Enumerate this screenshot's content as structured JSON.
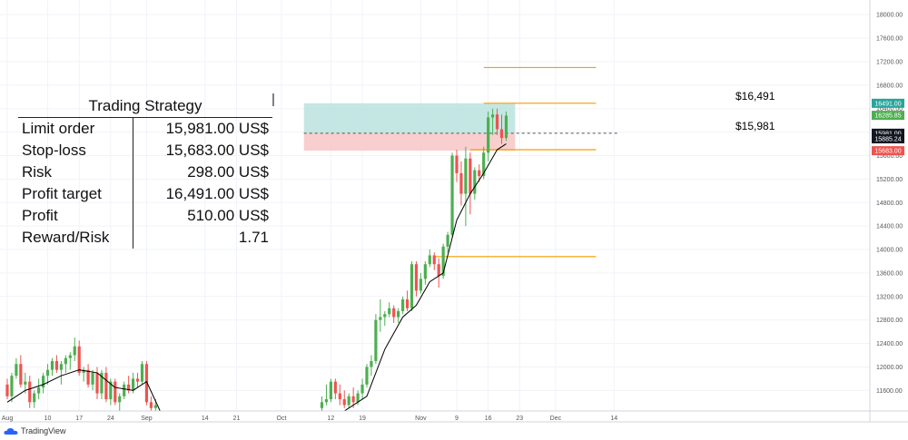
{
  "strategy": {
    "title": "Trading Strategy",
    "rows": [
      {
        "label": "Limit order",
        "value": "15,981.00 US$"
      },
      {
        "label": "Stop-loss",
        "value": "15,683.00 US$"
      },
      {
        "label": "Risk",
        "value": "298.00 US$"
      },
      {
        "label": "Profit target",
        "value": "16,491.00 US$"
      },
      {
        "label": "Profit",
        "value": "510.00 US$"
      },
      {
        "label": "Reward/Risk",
        "value": "1.71"
      }
    ]
  },
  "branding": {
    "logo": "TradingView"
  },
  "chart_data": {
    "type": "candlestick",
    "y_ticks": [
      11600,
      12000,
      12400,
      12800,
      13200,
      13600,
      14000,
      14400,
      14800,
      15200,
      15600,
      16000,
      16400,
      16800,
      17200,
      17600,
      18000
    ],
    "ylim": [
      11250,
      18250
    ],
    "x_ticks": [
      {
        "label": "Aug",
        "day": 0
      },
      {
        "label": "10",
        "day": 9
      },
      {
        "label": "17",
        "day": 16
      },
      {
        "label": "24",
        "day": 23
      },
      {
        "label": "Sep",
        "day": 31
      },
      {
        "label": "14",
        "day": 44
      },
      {
        "label": "21",
        "day": 51
      },
      {
        "label": "Oct",
        "day": 61
      },
      {
        "label": "12",
        "day": 72
      },
      {
        "label": "19",
        "day": 79
      },
      {
        "label": "Nov",
        "day": 92
      },
      {
        "label": "9",
        "day": 100
      },
      {
        "label": "16",
        "day": 107
      },
      {
        "label": "23",
        "day": 114
      },
      {
        "label": "Dec",
        "day": 122
      },
      {
        "label": "14",
        "day": 135
      }
    ],
    "candles": [
      {
        "d": 0,
        "o": 11700,
        "h": 11800,
        "l": 11450,
        "c": 11500
      },
      {
        "d": 1,
        "o": 11500,
        "h": 11900,
        "l": 11400,
        "c": 11850
      },
      {
        "d": 2,
        "o": 11850,
        "h": 12150,
        "l": 11800,
        "c": 12050
      },
      {
        "d": 3,
        "o": 12050,
        "h": 12200,
        "l": 11650,
        "c": 11700
      },
      {
        "d": 4,
        "o": 11700,
        "h": 11900,
        "l": 11550,
        "c": 11750
      },
      {
        "d": 5,
        "o": 11750,
        "h": 11850,
        "l": 11300,
        "c": 11400
      },
      {
        "d": 6,
        "o": 11400,
        "h": 11600,
        "l": 11300,
        "c": 11550
      },
      {
        "d": 7,
        "o": 11550,
        "h": 11800,
        "l": 11450,
        "c": 11650
      },
      {
        "d": 8,
        "o": 11650,
        "h": 11900,
        "l": 11550,
        "c": 11850
      },
      {
        "d": 9,
        "o": 11850,
        "h": 12050,
        "l": 11700,
        "c": 11950
      },
      {
        "d": 10,
        "o": 11950,
        "h": 12150,
        "l": 11850,
        "c": 12100
      },
      {
        "d": 11,
        "o": 12100,
        "h": 12200,
        "l": 11900,
        "c": 11950
      },
      {
        "d": 12,
        "o": 11950,
        "h": 12100,
        "l": 11700,
        "c": 12050
      },
      {
        "d": 13,
        "o": 12050,
        "h": 12200,
        "l": 11900,
        "c": 12150
      },
      {
        "d": 14,
        "o": 12150,
        "h": 12250,
        "l": 11950,
        "c": 12200
      },
      {
        "d": 15,
        "o": 12200,
        "h": 12500,
        "l": 12100,
        "c": 12350
      },
      {
        "d": 16,
        "o": 12350,
        "h": 12450,
        "l": 11850,
        "c": 11900
      },
      {
        "d": 17,
        "o": 11900,
        "h": 12000,
        "l": 11750,
        "c": 11950
      },
      {
        "d": 18,
        "o": 11950,
        "h": 12050,
        "l": 11650,
        "c": 11700
      },
      {
        "d": 19,
        "o": 11700,
        "h": 11950,
        "l": 11600,
        "c": 11900
      },
      {
        "d": 20,
        "o": 11900,
        "h": 12000,
        "l": 11450,
        "c": 11550
      },
      {
        "d": 21,
        "o": 11550,
        "h": 11950,
        "l": 11450,
        "c": 11900
      },
      {
        "d": 22,
        "o": 11900,
        "h": 12000,
        "l": 11400,
        "c": 11450
      },
      {
        "d": 23,
        "o": 11450,
        "h": 11800,
        "l": 11350,
        "c": 11750
      },
      {
        "d": 24,
        "o": 11750,
        "h": 11800,
        "l": 11350,
        "c": 11400
      },
      {
        "d": 25,
        "o": 11400,
        "h": 11550,
        "l": 11250,
        "c": 11500
      },
      {
        "d": 26,
        "o": 11500,
        "h": 11750,
        "l": 11450,
        "c": 11700
      },
      {
        "d": 27,
        "o": 11700,
        "h": 11850,
        "l": 11550,
        "c": 11600
      },
      {
        "d": 28,
        "o": 11600,
        "h": 11900,
        "l": 11550,
        "c": 11800
      },
      {
        "d": 29,
        "o": 11800,
        "h": 11900,
        "l": 11650,
        "c": 11750
      },
      {
        "d": 30,
        "o": 11750,
        "h": 12100,
        "l": 11700,
        "c": 12050
      },
      {
        "d": 31,
        "o": 12050,
        "h": 12100,
        "l": 11350,
        "c": 11400
      },
      {
        "d": 32,
        "o": 11400,
        "h": 11500,
        "l": 11250,
        "c": 11300
      },
      {
        "d": 33,
        "o": 11300,
        "h": 11450,
        "l": 11250,
        "c": 11350
      },
      {
        "d": 70,
        "o": 11300,
        "h": 11500,
        "l": 11250,
        "c": 11400
      },
      {
        "d": 71,
        "o": 11400,
        "h": 11700,
        "l": 11350,
        "c": 11450
      },
      {
        "d": 72,
        "o": 11450,
        "h": 11800,
        "l": 11400,
        "c": 11750
      },
      {
        "d": 73,
        "o": 11750,
        "h": 11800,
        "l": 11450,
        "c": 11550
      },
      {
        "d": 74,
        "o": 11550,
        "h": 11700,
        "l": 11350,
        "c": 11450
      },
      {
        "d": 75,
        "o": 11450,
        "h": 11600,
        "l": 11300,
        "c": 11350
      },
      {
        "d": 76,
        "o": 11350,
        "h": 11550,
        "l": 11300,
        "c": 11500
      },
      {
        "d": 77,
        "o": 11500,
        "h": 11650,
        "l": 11300,
        "c": 11400
      },
      {
        "d": 78,
        "o": 11400,
        "h": 11600,
        "l": 11350,
        "c": 11550
      },
      {
        "d": 79,
        "o": 11550,
        "h": 11800,
        "l": 11450,
        "c": 11700
      },
      {
        "d": 80,
        "o": 11700,
        "h": 12050,
        "l": 11650,
        "c": 12000
      },
      {
        "d": 81,
        "o": 12000,
        "h": 12200,
        "l": 11850,
        "c": 12100
      },
      {
        "d": 82,
        "o": 12100,
        "h": 12900,
        "l": 12050,
        "c": 12800
      },
      {
        "d": 83,
        "o": 12800,
        "h": 13150,
        "l": 12600,
        "c": 12850
      },
      {
        "d": 84,
        "o": 12850,
        "h": 12950,
        "l": 12700,
        "c": 12900
      },
      {
        "d": 85,
        "o": 12900,
        "h": 13100,
        "l": 12850,
        "c": 13000
      },
      {
        "d": 86,
        "o": 13000,
        "h": 13050,
        "l": 12750,
        "c": 12850
      },
      {
        "d": 87,
        "o": 12850,
        "h": 13000,
        "l": 12750,
        "c": 12950
      },
      {
        "d": 88,
        "o": 12950,
        "h": 13200,
        "l": 12900,
        "c": 13150
      },
      {
        "d": 89,
        "o": 13150,
        "h": 13300,
        "l": 12950,
        "c": 13000
      },
      {
        "d": 90,
        "o": 13000,
        "h": 13800,
        "l": 12950,
        "c": 13750
      },
      {
        "d": 91,
        "o": 13750,
        "h": 13800,
        "l": 13200,
        "c": 13300
      },
      {
        "d": 92,
        "o": 13300,
        "h": 13600,
        "l": 13250,
        "c": 13500
      },
      {
        "d": 93,
        "o": 13500,
        "h": 13800,
        "l": 13400,
        "c": 13750
      },
      {
        "d": 94,
        "o": 13750,
        "h": 14000,
        "l": 13700,
        "c": 13900
      },
      {
        "d": 95,
        "o": 13900,
        "h": 13950,
        "l": 13650,
        "c": 13750
      },
      {
        "d": 96,
        "o": 13750,
        "h": 13850,
        "l": 13350,
        "c": 13550
      },
      {
        "d": 97,
        "o": 13550,
        "h": 14100,
        "l": 13500,
        "c": 14050
      },
      {
        "d": 98,
        "o": 14050,
        "h": 14300,
        "l": 13950,
        "c": 14250
      },
      {
        "d": 99,
        "o": 14250,
        "h": 15650,
        "l": 14200,
        "c": 15600
      },
      {
        "d": 100,
        "o": 15600,
        "h": 15700,
        "l": 15150,
        "c": 15300
      },
      {
        "d": 101,
        "o": 15300,
        "h": 15500,
        "l": 14750,
        "c": 14950
      },
      {
        "d": 102,
        "o": 14950,
        "h": 15750,
        "l": 14400,
        "c": 15550
      },
      {
        "d": 103,
        "o": 15550,
        "h": 15650,
        "l": 14600,
        "c": 14950
      },
      {
        "d": 104,
        "o": 14950,
        "h": 15400,
        "l": 14850,
        "c": 15350
      },
      {
        "d": 105,
        "o": 15350,
        "h": 15450,
        "l": 15150,
        "c": 15250
      },
      {
        "d": 106,
        "o": 15250,
        "h": 15750,
        "l": 15200,
        "c": 15650
      },
      {
        "d": 107,
        "o": 15650,
        "h": 16350,
        "l": 15500,
        "c": 16250
      },
      {
        "d": 108,
        "o": 16250,
        "h": 16400,
        "l": 15950,
        "c": 16300
      },
      {
        "d": 109,
        "o": 16300,
        "h": 16400,
        "l": 15950,
        "c": 16050
      },
      {
        "d": 110,
        "o": 16050,
        "h": 16300,
        "l": 15800,
        "c": 15900
      },
      {
        "d": 111,
        "o": 15900,
        "h": 16350,
        "l": 15850,
        "c": 16280
      }
    ],
    "ma_line": [
      {
        "d": 0,
        "v": 11400
      },
      {
        "d": 4,
        "v": 11600
      },
      {
        "d": 8,
        "v": 11700
      },
      {
        "d": 12,
        "v": 11850
      },
      {
        "d": 16,
        "v": 11950
      },
      {
        "d": 20,
        "v": 11900
      },
      {
        "d": 24,
        "v": 11650
      },
      {
        "d": 28,
        "v": 11600
      },
      {
        "d": 31,
        "v": 11750
      },
      {
        "d": 34,
        "v": 11250
      },
      {
        "d": 75,
        "v": 11250
      },
      {
        "d": 80,
        "v": 11500
      },
      {
        "d": 84,
        "v": 12300
      },
      {
        "d": 88,
        "v": 12850
      },
      {
        "d": 91,
        "v": 13050
      },
      {
        "d": 94,
        "v": 13450
      },
      {
        "d": 97,
        "v": 13600
      },
      {
        "d": 100,
        "v": 14500
      },
      {
        "d": 103,
        "v": 14950
      },
      {
        "d": 106,
        "v": 15300
      },
      {
        "d": 109,
        "v": 15700
      },
      {
        "d": 111,
        "v": 15800
      }
    ],
    "position": {
      "entry": 15981,
      "stop": 15683,
      "target": 16491,
      "start_day": 66,
      "end_day": 113,
      "label_target": "$16,491",
      "label_entry": "$15,981"
    },
    "h_lines": [
      {
        "v": 17100,
        "from": 106,
        "to": 131
      },
      {
        "v": 16491,
        "from": 106,
        "to": 131
      },
      {
        "v": 15700,
        "from": 103,
        "to": 131
      },
      {
        "v": 13880,
        "from": 95,
        "to": 131
      }
    ],
    "price_tags": [
      {
        "v": 16491,
        "text": "16491.00",
        "bg": "#26a69a"
      },
      {
        "v": 16285.85,
        "text": "16285.85",
        "bg": "#4caf50"
      },
      {
        "v": 15981,
        "text": "15981.00",
        "bg": "#131722"
      },
      {
        "v": 15885.24,
        "text": "15885.24",
        "bg": "#131722"
      },
      {
        "v": 15683,
        "text": "15683.00",
        "bg": "#ef5350"
      }
    ],
    "colors": {
      "up": "#4caf50",
      "down": "#ef5350",
      "ma": "#000000",
      "hline": "#f59e00",
      "profit_zone": "#b2dfdb",
      "loss_zone": "#f8c6c6"
    }
  }
}
